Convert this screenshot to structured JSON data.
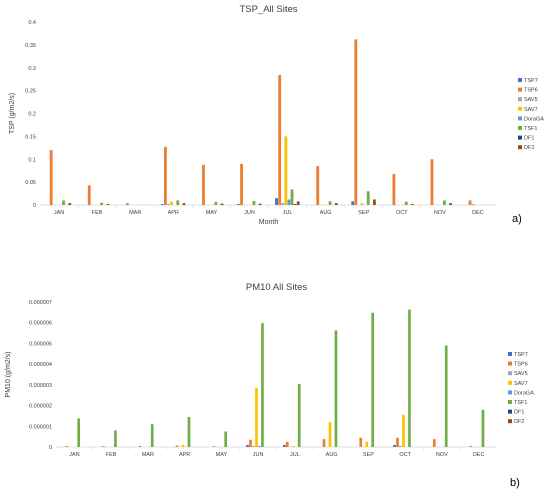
{
  "chart_data": [
    {
      "type": "bar",
      "panel_label": "a)",
      "title": "TSP_All Sites",
      "xlabel": "Month",
      "ylabel": "TSP (g/m2/s)",
      "ylim": [
        0,
        0.4
      ],
      "yticks": [
        "0",
        "0.05",
        "0.1",
        "0.15",
        "0.2",
        "0.25",
        "0.3",
        "0.35",
        "0.4"
      ],
      "categories": [
        "JAN",
        "FEB",
        "MAR",
        "APR",
        "MAY",
        "JUN",
        "JUL",
        "AUG",
        "SEP",
        "OCT",
        "NOV",
        "DEC"
      ],
      "grid": false,
      "legend_position": "right",
      "series": [
        {
          "name": "TSP7",
          "color": "#4472c4",
          "values": [
            0,
            0,
            0,
            0.002,
            0,
            0.002,
            0.015,
            0,
            0.008,
            0,
            0,
            0
          ]
        },
        {
          "name": "TSP6",
          "color": "#ed7d31",
          "values": [
            0.12,
            0.043,
            0.004,
            0.127,
            0.088,
            0.09,
            0.284,
            0.085,
            0.362,
            0.068,
            0.1,
            0.01
          ]
        },
        {
          "name": "SAV5",
          "color": "#a5a5a5",
          "values": [
            0,
            0,
            0,
            0.002,
            0,
            0,
            0.004,
            0,
            0,
            0,
            0,
            0.002
          ]
        },
        {
          "name": "SAV7",
          "color": "#ffc000",
          "values": [
            0,
            0,
            0,
            0.007,
            0,
            0,
            0.15,
            0,
            0.004,
            0,
            0,
            0
          ]
        },
        {
          "name": "DoraGA",
          "color": "#5b9bd5",
          "values": [
            0,
            0,
            0,
            0,
            0,
            0,
            0.012,
            0,
            0,
            0,
            0,
            0
          ]
        },
        {
          "name": "TSF1",
          "color": "#70ad47",
          "values": [
            0.01,
            0.005,
            0,
            0.01,
            0.007,
            0.009,
            0.034,
            0.008,
            0.03,
            0.007,
            0.01,
            0
          ]
        },
        {
          "name": "DF1",
          "color": "#264478",
          "values": [
            0,
            0,
            0,
            0,
            0,
            0,
            0.002,
            0,
            0,
            0,
            0,
            0
          ]
        },
        {
          "name": "DF2",
          "color": "#9e480e",
          "values": [
            0.004,
            0.002,
            0,
            0.004,
            0.003,
            0.003,
            0.008,
            0.004,
            0.012,
            0.002,
            0.004,
            0
          ]
        }
      ]
    },
    {
      "type": "bar",
      "panel_label": "b)",
      "title": "PM10 All Sites",
      "xlabel": "",
      "ylabel": "PM10 (g/m2/s)",
      "ylim": [
        0,
        7e-06
      ],
      "yticks": [
        "0",
        "0.000001",
        "0.000002",
        "0.000003",
        "0.000004",
        "0.000005",
        "0.000006",
        "0.000007"
      ],
      "categories": [
        "JAN",
        "FEB",
        "MAR",
        "APR",
        "MAY",
        "JUN",
        "JUL",
        "AUG",
        "SEP",
        "OCT",
        "NOV",
        "DEC"
      ],
      "grid": false,
      "legend_position": "right",
      "series": [
        {
          "name": "TSP7",
          "color": "#4472c4",
          "values": [
            0,
            0,
            0,
            0,
            0,
            1e-07,
            1e-07,
            0,
            0,
            1e-07,
            0,
            0
          ]
        },
        {
          "name": "TSP6",
          "color": "#ed7d31",
          "values": [
            5e-08,
            4e-08,
            5e-08,
            7e-08,
            3e-08,
            3.5e-07,
            2.5e-07,
            3.8e-07,
            4.5e-07,
            4.5e-07,
            3.8e-07,
            5e-08
          ]
        },
        {
          "name": "SAV5",
          "color": "#a5a5a5",
          "values": [
            0,
            0,
            0,
            0,
            0,
            5e-08,
            0,
            0,
            0,
            5e-08,
            0,
            0
          ]
        },
        {
          "name": "SAV7",
          "color": "#ffc000",
          "values": [
            0,
            0,
            0,
            1e-07,
            0,
            2.85e-06,
            5e-08,
            1.2e-06,
            2.5e-07,
            1.55e-06,
            0,
            0
          ]
        },
        {
          "name": "DoraGA",
          "color": "#5b9bd5",
          "values": [
            0,
            0,
            0,
            0,
            0,
            5e-08,
            0,
            0,
            0,
            0,
            0,
            0
          ]
        },
        {
          "name": "TSF1",
          "color": "#70ad47",
          "values": [
            1.38e-06,
            8e-07,
            1.1e-06,
            1.45e-06,
            7.5e-07,
            5.98e-06,
            3.05e-06,
            5.63e-06,
            6.48e-06,
            6.63e-06,
            4.9e-06,
            1.8e-06
          ]
        },
        {
          "name": "DF1",
          "color": "#264478",
          "values": [
            0,
            0,
            0,
            0,
            0,
            0,
            0,
            0,
            0,
            0,
            0,
            0
          ]
        },
        {
          "name": "DF2",
          "color": "#9e480e",
          "values": [
            0,
            0,
            0,
            0,
            0,
            0,
            0,
            0,
            0,
            0,
            0,
            0
          ]
        }
      ]
    }
  ]
}
